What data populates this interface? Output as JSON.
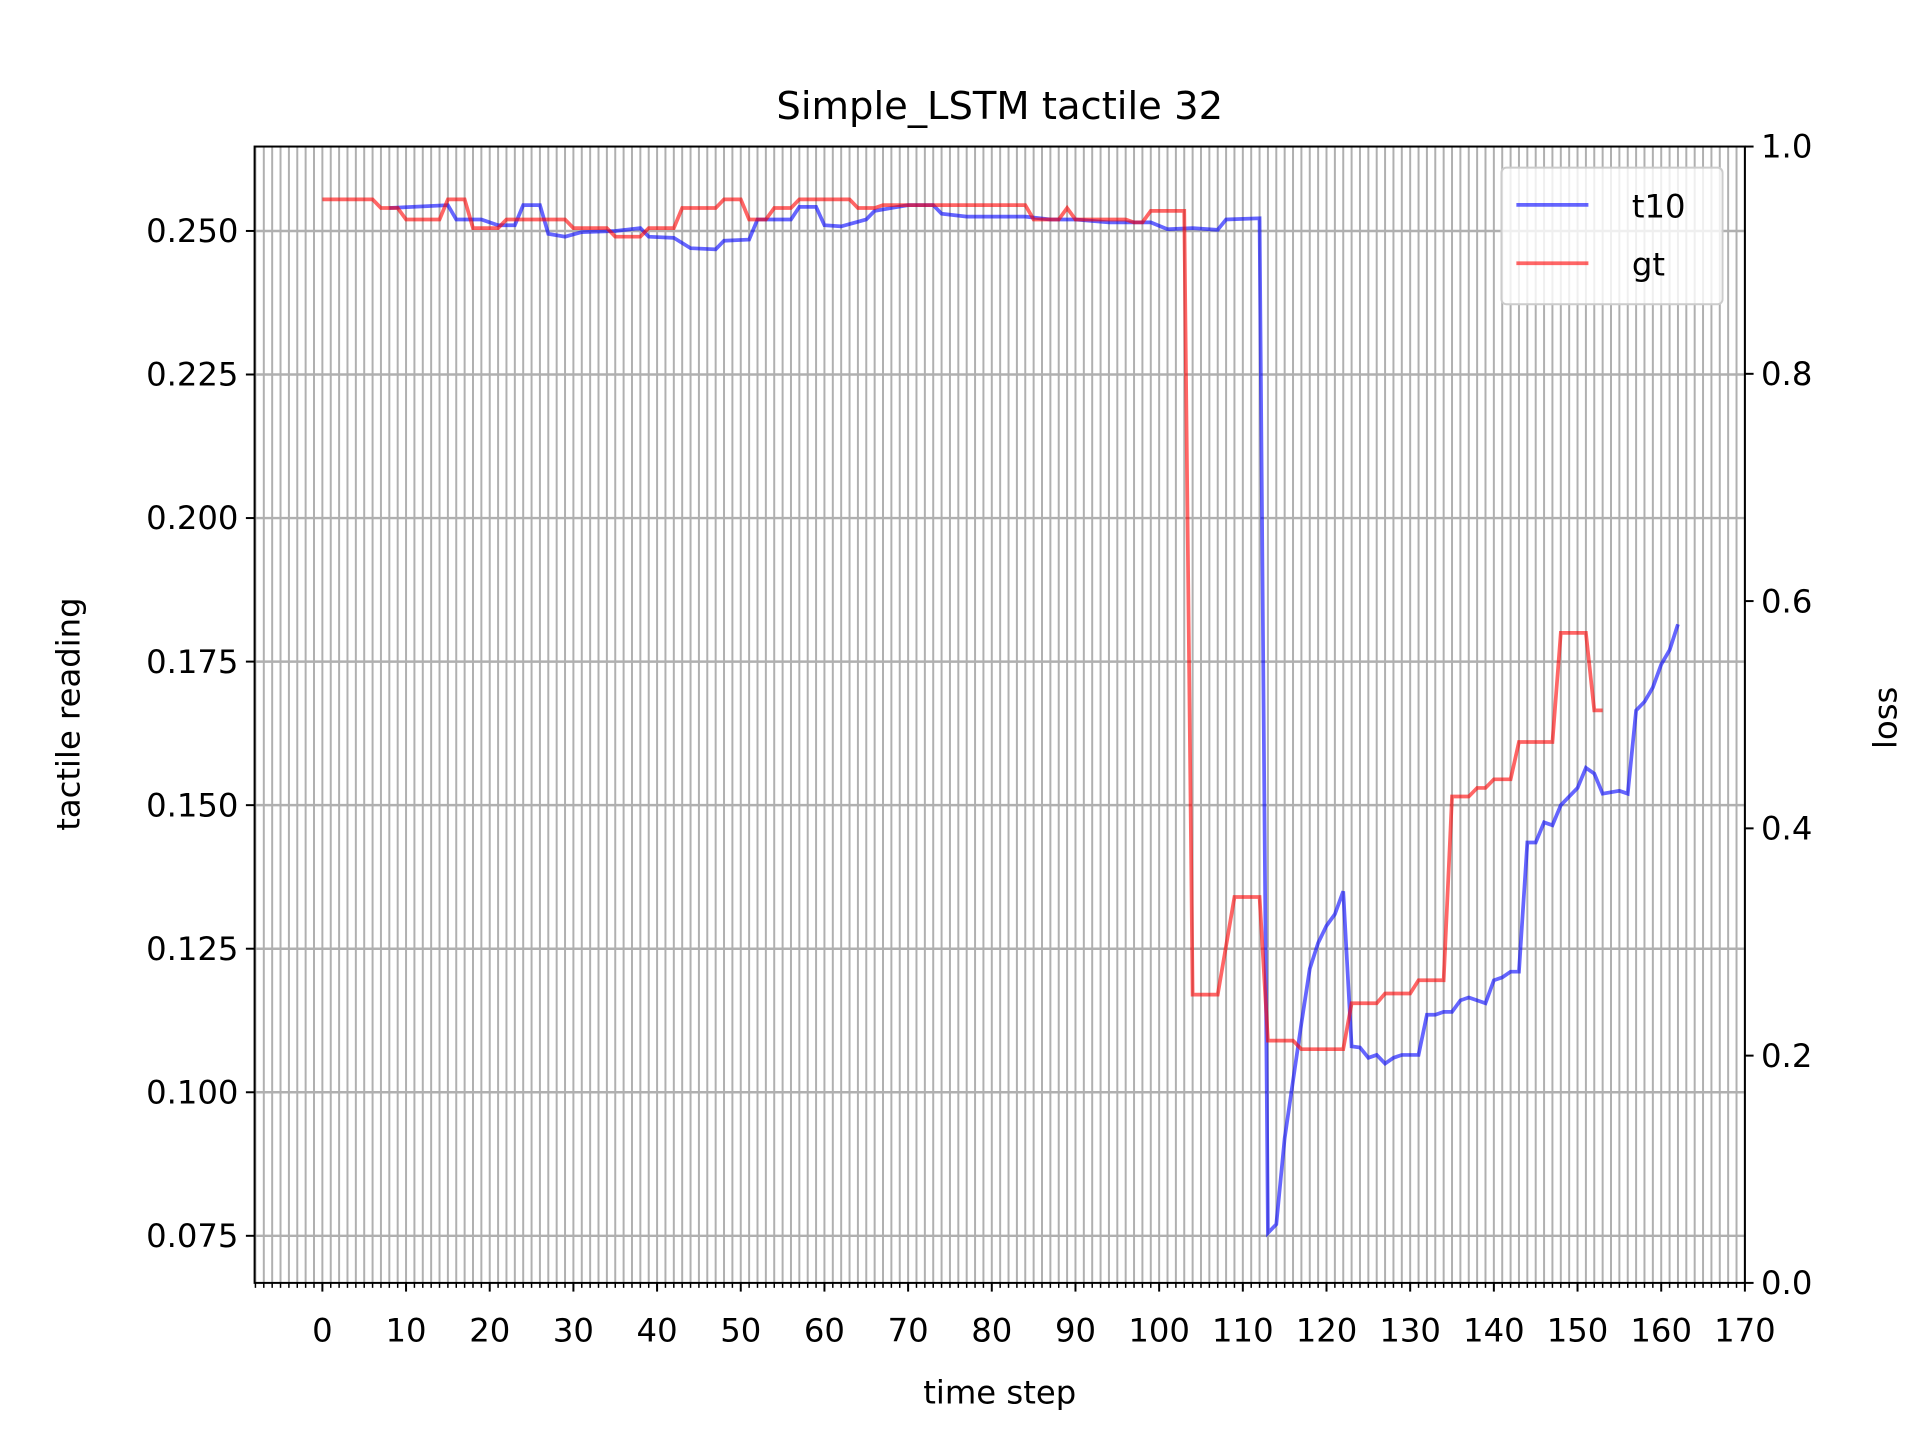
{
  "chart_data": {
    "type": "line",
    "title": "Simple_LSTM tactile 32",
    "xlabel": "time step",
    "ylabel": "tactile reading",
    "y2label": "loss",
    "xlim": [
      -8.1,
      170
    ],
    "xticks": [
      0,
      10,
      20,
      30,
      40,
      50,
      60,
      70,
      80,
      90,
      100,
      110,
      120,
      130,
      140,
      150,
      160,
      170
    ],
    "ylim": [
      0.0668,
      0.2647
    ],
    "yticks": [
      {
        "value": 0.075,
        "label": "0.075"
      },
      {
        "value": 0.1,
        "label": "0.100"
      },
      {
        "value": 0.125,
        "label": "0.125"
      },
      {
        "value": 0.15,
        "label": "0.150"
      },
      {
        "value": 0.175,
        "label": "0.175"
      },
      {
        "value": 0.2,
        "label": "0.200"
      },
      {
        "value": 0.225,
        "label": "0.225"
      },
      {
        "value": 0.25,
        "label": "0.250"
      }
    ],
    "y2lim": [
      0,
      1
    ],
    "y2ticks": [
      {
        "value": 0,
        "label": "0.0"
      },
      0.2,
      0.4,
      0.6,
      0.8,
      {
        "value": 1,
        "label": "1.0"
      }
    ],
    "grid": true,
    "minor_x_grid": true,
    "legend": "upper right",
    "series": [
      {
        "name": "t10",
        "color": "#0000ff",
        "x": [
          8,
          15,
          16,
          19,
          21,
          23,
          24,
          26,
          27,
          29,
          31,
          35,
          38,
          39,
          42,
          44,
          47,
          48,
          51,
          52,
          56,
          57,
          59,
          60,
          62,
          65,
          66,
          70,
          73,
          74,
          77,
          84,
          87,
          90,
          94,
          97,
          99,
          101,
          104,
          107,
          108,
          112,
          113,
          114,
          115,
          116,
          117,
          118,
          119,
          120,
          121,
          122,
          123,
          124,
          125,
          126,
          127,
          128,
          129,
          131,
          132,
          133,
          134,
          135,
          136,
          137,
          138,
          139,
          140,
          141,
          142,
          143,
          144,
          145,
          146,
          147,
          148,
          150,
          151,
          152,
          153,
          155,
          156,
          157,
          158,
          159,
          160,
          161,
          162
        ],
        "values": [
          0.254,
          0.2545,
          0.252,
          0.252,
          0.251,
          0.251,
          0.2545,
          0.2545,
          0.2495,
          0.249,
          0.2498,
          0.25,
          0.2505,
          0.249,
          0.2488,
          0.247,
          0.2468,
          0.2483,
          0.2485,
          0.252,
          0.252,
          0.2542,
          0.2542,
          0.251,
          0.2508,
          0.252,
          0.2535,
          0.2545,
          0.2545,
          0.253,
          0.2525,
          0.2525,
          0.252,
          0.252,
          0.2515,
          0.2515,
          0.2515,
          0.2503,
          0.2505,
          0.2502,
          0.252,
          0.2522,
          0.0755,
          0.077,
          0.092,
          0.102,
          0.112,
          0.1215,
          0.126,
          0.129,
          0.131,
          0.135,
          0.108,
          0.1078,
          0.106,
          0.1065,
          0.105,
          0.106,
          0.1065,
          0.1065,
          0.1135,
          0.1135,
          0.114,
          0.114,
          0.116,
          0.1165,
          0.116,
          0.1155,
          0.1195,
          0.12,
          0.121,
          0.121,
          0.1435,
          0.1435,
          0.147,
          0.1465,
          0.15,
          0.153,
          0.1565,
          0.1555,
          0.152,
          0.1525,
          0.152,
          0.1665,
          0.168,
          0.1705,
          0.1745,
          0.177,
          0.1815
        ]
      },
      {
        "name": "gt",
        "color": "#ff0000",
        "x": [
          0,
          6,
          7,
          9,
          10,
          14,
          15,
          17,
          18,
          21,
          22,
          29,
          30,
          34,
          35,
          38,
          39,
          42,
          43,
          47,
          48,
          50,
          51,
          53,
          54,
          56,
          57,
          63,
          64,
          66,
          67,
          84,
          85,
          88,
          89,
          90,
          96,
          97,
          98,
          99,
          103,
          104,
          107,
          109,
          112,
          113,
          116,
          117,
          122,
          123,
          126,
          127,
          130,
          131,
          134,
          135,
          137,
          138,
          139,
          140,
          142,
          143,
          147,
          148,
          151,
          152,
          153
        ],
        "values": [
          0.2555,
          0.2555,
          0.254,
          0.254,
          0.252,
          0.252,
          0.2555,
          0.2555,
          0.2505,
          0.2505,
          0.252,
          0.252,
          0.2505,
          0.2505,
          0.249,
          0.249,
          0.2505,
          0.2505,
          0.254,
          0.254,
          0.2555,
          0.2555,
          0.252,
          0.252,
          0.254,
          0.254,
          0.2555,
          0.2555,
          0.254,
          0.254,
          0.2545,
          0.2545,
          0.252,
          0.252,
          0.254,
          0.252,
          0.252,
          0.2515,
          0.2515,
          0.2535,
          0.2535,
          0.117,
          0.117,
          0.134,
          0.134,
          0.109,
          0.109,
          0.1075,
          0.1075,
          0.1155,
          0.1155,
          0.1172,
          0.1172,
          0.1195,
          0.1195,
          0.1515,
          0.1515,
          0.153,
          0.153,
          0.1545,
          0.1545,
          0.161,
          0.161,
          0.18,
          0.18,
          0.1665,
          0.1665
        ]
      }
    ]
  }
}
